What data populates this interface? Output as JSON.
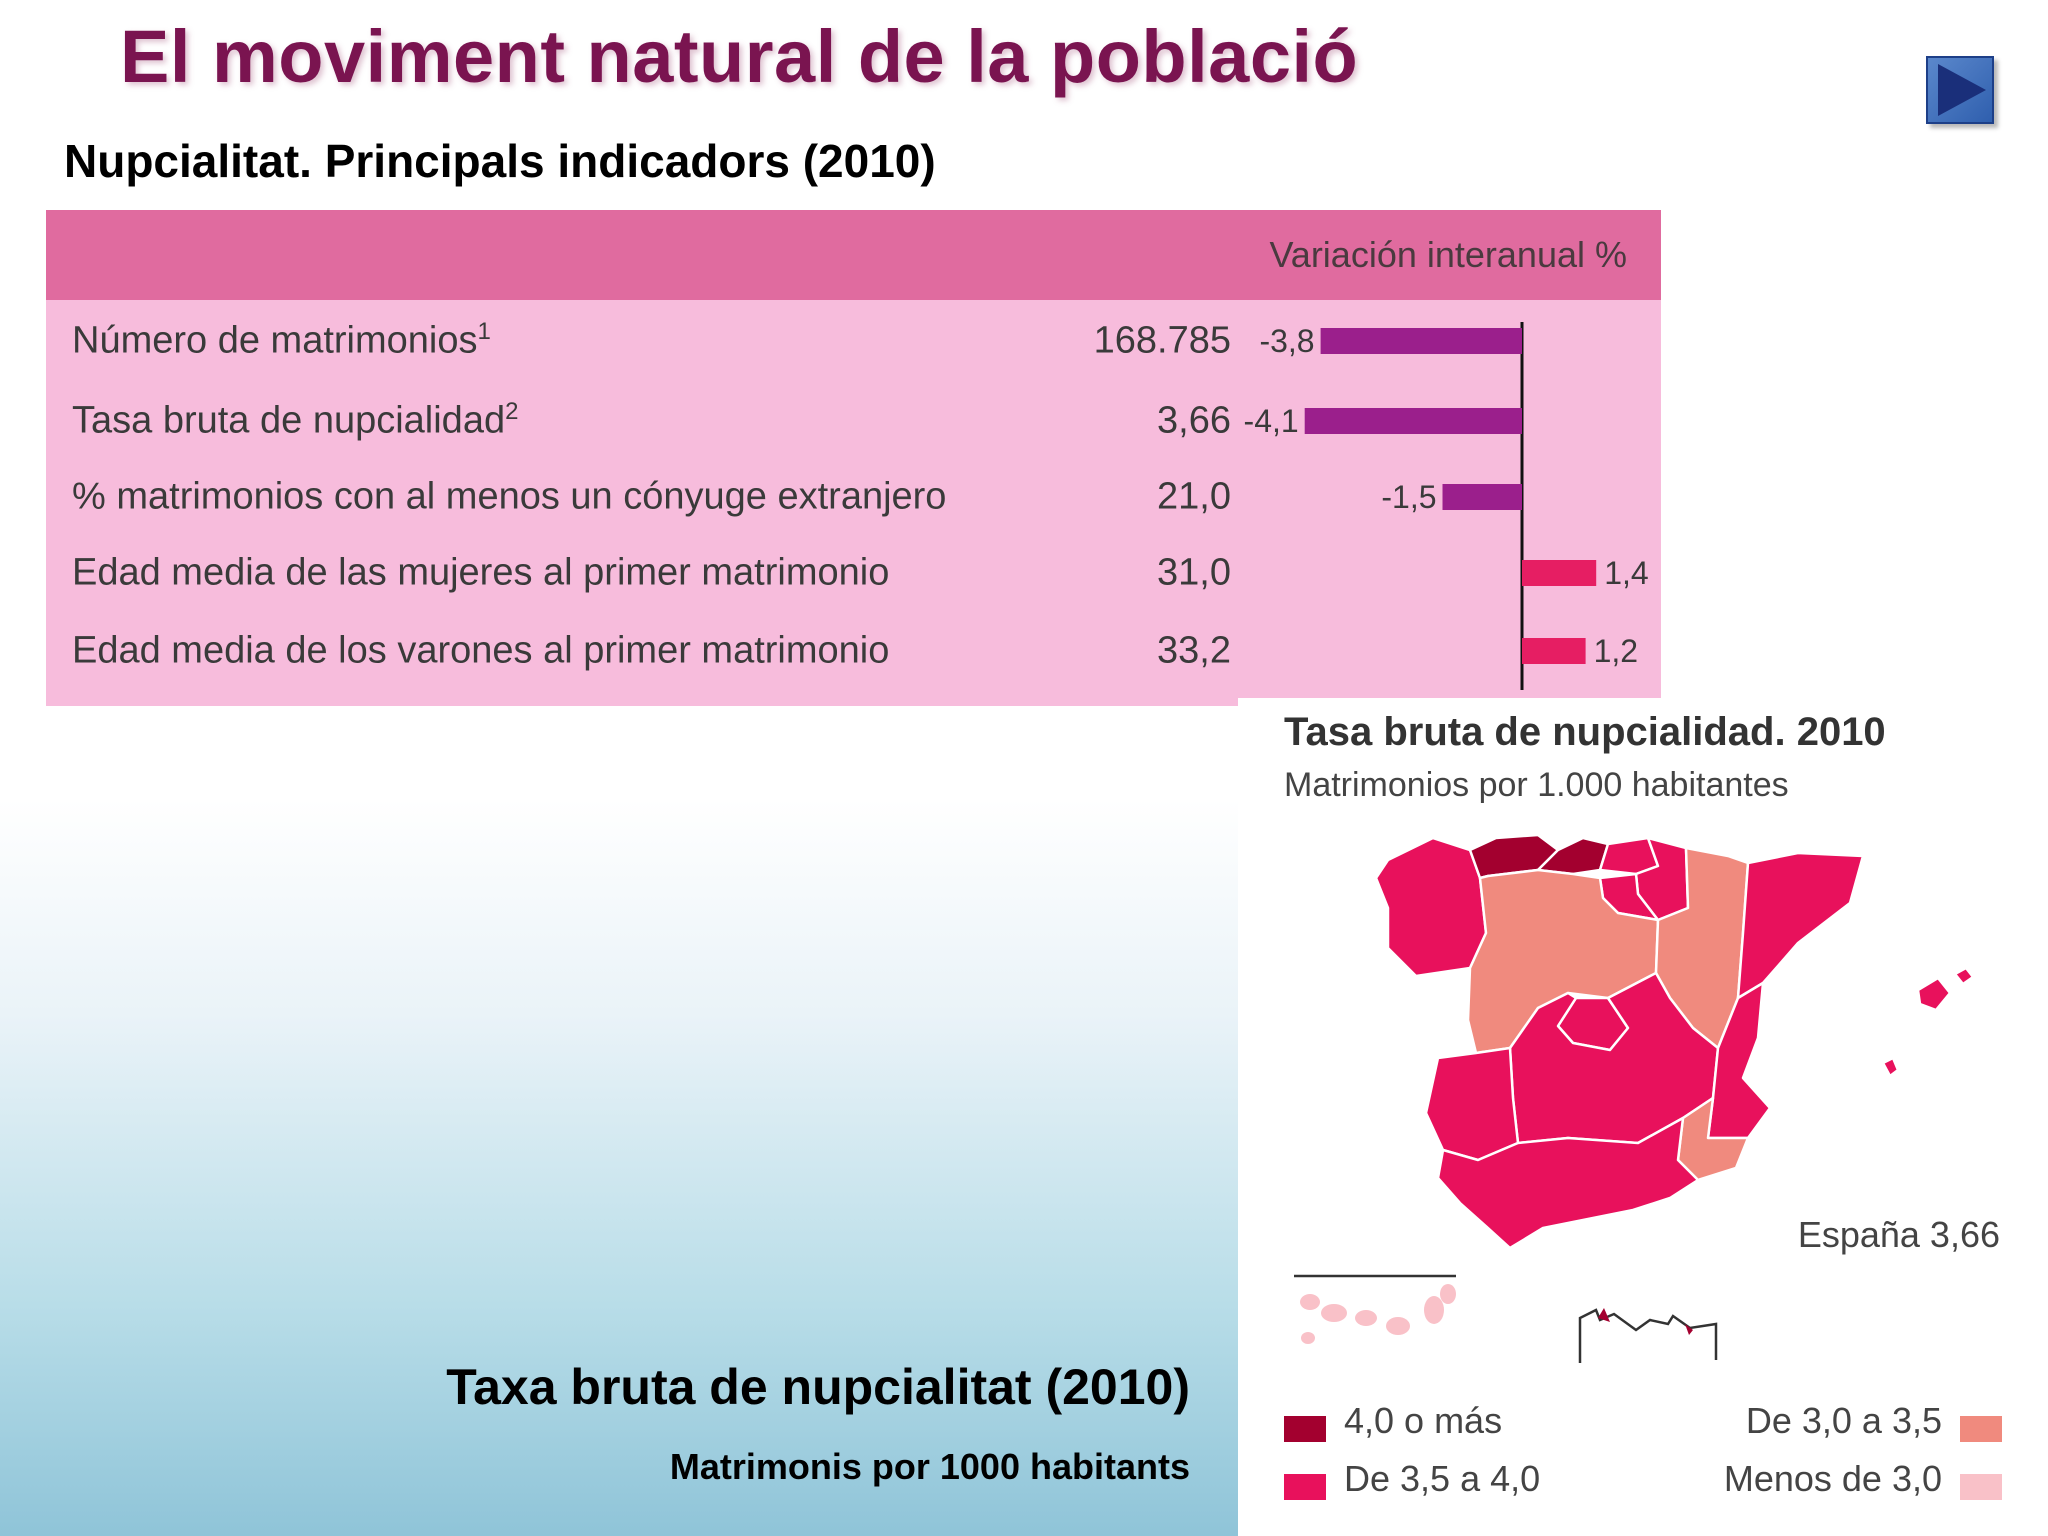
{
  "slide": {
    "title": "El moviment natural de la població",
    "subtitle": "Nupcialitat. Principals indicadors (2010)",
    "caption_title": "Taxa bruta de nupcialitat (2010)",
    "caption_subtitle": "Matrimonis por 1000 habitants",
    "nav_icon": "play-next-icon"
  },
  "colors": {
    "header_band": "#e06b9f",
    "table_bg": "#f7bcdc",
    "negative_bar": "#9b1f8c",
    "positive_bar": "#e61e63",
    "title": "#7a1450",
    "legend": [
      "#a3002f",
      "#e8115c",
      "#f08a7e",
      "#f9c1c8"
    ]
  },
  "table": {
    "header": "Variación interanual %",
    "rows": [
      {
        "label": "Número de matrimonios",
        "sup": "1",
        "value": "168.785",
        "change": "-3,8"
      },
      {
        "label": "Tasa bruta de nupcialidad",
        "sup": "2",
        "value": "3,66",
        "change": "-4,1"
      },
      {
        "label": "% matrimonios con al menos un cónyuge extranjero",
        "sup": "",
        "value": "21,0",
        "change": "-1,5"
      },
      {
        "label": "Edad media de las mujeres al primer matrimonio",
        "sup": "",
        "value": "31,0",
        "change": "1,4"
      },
      {
        "label": "Edad media de los varones al primer matrimonio",
        "sup": "",
        "value": "33,2",
        "change": "1,2"
      }
    ]
  },
  "chart_data": [
    {
      "type": "bar",
      "orientation": "horizontal",
      "title": "Variación interanual %",
      "categories": [
        "Número de matrimonios",
        "Tasa bruta de nupcialidad",
        "% matrimonios con al menos un cónyuge extranjero",
        "Edad media de las mujeres al primer matrimonio",
        "Edad media de los varones al primer matrimonio"
      ],
      "values": [
        -3.8,
        -4.1,
        -1.5,
        1.4,
        1.2
      ],
      "data_labels": [
        "-3,8",
        "-4,1",
        "-1,5",
        "1,4",
        "1,2"
      ]
    },
    {
      "type": "choropleth",
      "title": "Tasa bruta de nupcialidad. 2010",
      "subtitle": "Matrimonios por 1.000 habitantes",
      "national_value_label": "España 3,66",
      "legend": [
        {
          "label": "4,0 o más",
          "color": "#a3002f"
        },
        {
          "label": "De 3,5 a 4,0",
          "color": "#e8115c"
        },
        {
          "label": "De 3,0 a 3,5",
          "color": "#f08a7e"
        },
        {
          "label": "Menos de 3,0",
          "color": "#f9c1c8"
        }
      ]
    }
  ]
}
